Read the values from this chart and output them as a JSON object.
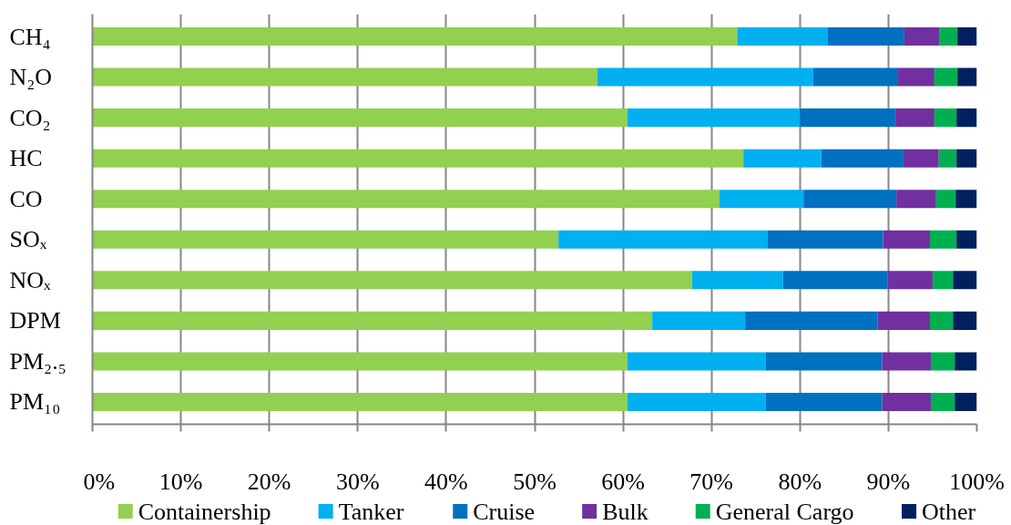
{
  "chart_data": {
    "type": "bar",
    "orientation": "horizontal",
    "stacked": true,
    "categories": [
      "CH₄",
      "N₂O",
      "CO₂",
      "HC",
      "CO",
      "SOₓ",
      "NOₓ",
      "DPM",
      "PM₂.₅",
      "PM₁₀"
    ],
    "series": [
      {
        "name": "Containership",
        "color": "#92d050",
        "values": [
          72.9,
          57.1,
          60.5,
          73.6,
          70.9,
          52.7,
          67.8,
          63.3,
          60.5,
          60.5
        ]
      },
      {
        "name": "Tanker",
        "color": "#00b0f0",
        "values": [
          10.2,
          24.4,
          19.5,
          8.8,
          9.5,
          23.6,
          10.3,
          10.5,
          15.6,
          15.6
        ]
      },
      {
        "name": "Cruise",
        "color": "#0070c0",
        "values": [
          8.7,
          9.6,
          10.8,
          9.3,
          10.5,
          13.1,
          11.8,
          15.0,
          13.2,
          13.2
        ]
      },
      {
        "name": "Bulk",
        "color": "#7030a0",
        "values": [
          4.0,
          4.1,
          4.4,
          4.0,
          4.5,
          5.3,
          5.1,
          5.9,
          5.5,
          5.5
        ]
      },
      {
        "name": "General Cargo",
        "color": "#00b050",
        "values": [
          2.0,
          2.6,
          2.5,
          2.0,
          2.2,
          3.0,
          2.3,
          2.6,
          2.7,
          2.7
        ]
      },
      {
        "name": "Other",
        "color": "#002060",
        "values": [
          2.2,
          2.2,
          2.3,
          2.3,
          2.4,
          2.3,
          2.7,
          2.7,
          2.5,
          2.5
        ]
      }
    ],
    "xlim": [
      0,
      100
    ],
    "xticks": [
      {
        "value": 0,
        "label": "0%"
      },
      {
        "value": 10,
        "label": "10%"
      },
      {
        "value": 20,
        "label": "20%"
      },
      {
        "value": 30,
        "label": "30%"
      },
      {
        "value": 40,
        "label": "40%"
      },
      {
        "value": 50,
        "label": "50%"
      },
      {
        "value": 60,
        "label": "60%"
      },
      {
        "value": 70,
        "label": "70%"
      },
      {
        "value": 80,
        "label": "80%"
      },
      {
        "value": 90,
        "label": "90%"
      },
      {
        "value": 100,
        "label": "100%"
      }
    ],
    "grid": "x",
    "legend": "bottom"
  }
}
